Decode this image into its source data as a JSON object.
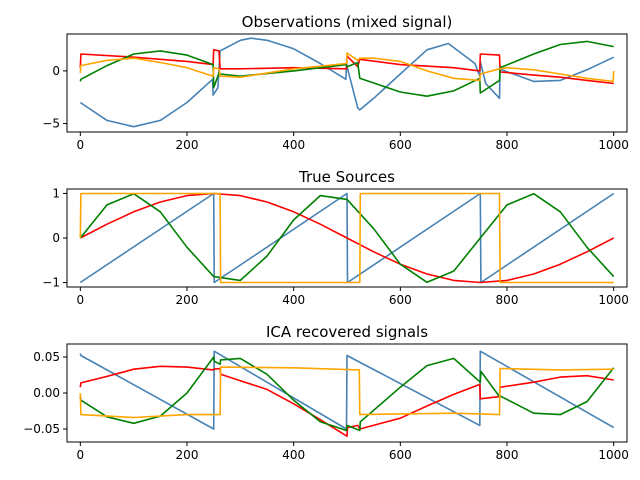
{
  "chart_data": [
    {
      "type": "line",
      "title": "Observations (mixed signal)",
      "xlim": [
        -25,
        1025
      ],
      "ylim": [
        -5.8,
        3.5
      ],
      "xticks": [
        0,
        200,
        400,
        600,
        800,
        1000
      ],
      "xtick_labels": [
        "0",
        "200",
        "400",
        "600",
        "800",
        "1000"
      ],
      "yticks": [
        0,
        -5
      ],
      "ytick_labels": [
        "0",
        "−5"
      ],
      "series": [
        {
          "color": "#4682b4",
          "x": [
            0,
            50,
            100,
            150,
            200,
            248,
            249,
            258,
            262,
            300,
            320,
            350,
            400,
            450,
            498,
            499,
            520,
            524,
            550,
            600,
            650,
            690,
            740,
            749,
            750,
            760,
            786,
            787,
            790,
            850,
            900,
            950,
            1000
          ],
          "y": [
            -3.0,
            -4.7,
            -5.3,
            -4.7,
            -3.0,
            -0.8,
            -2.3,
            -1.6,
            1.9,
            2.9,
            3.1,
            2.9,
            2.1,
            0.7,
            -0.8,
            0.6,
            -3.5,
            -3.7,
            -2.6,
            -0.3,
            2.0,
            2.6,
            0.7,
            -0.5,
            0.9,
            -1.2,
            -2.6,
            0.5,
            0.1,
            -1.0,
            -0.9,
            0.1,
            1.3
          ]
        },
        {
          "color": "#ff0000",
          "x": [
            0,
            1,
            100,
            200,
            249,
            250,
            260,
            262,
            300,
            400,
            499,
            500,
            520,
            524,
            600,
            700,
            749,
            750,
            786,
            787,
            850,
            900,
            950,
            1000
          ],
          "y": [
            0.3,
            1.6,
            1.3,
            0.9,
            0.6,
            2.0,
            1.9,
            0.2,
            0.2,
            0.3,
            0.2,
            1.4,
            0.4,
            1.1,
            0.6,
            0.3,
            0.0,
            1.6,
            1.5,
            -0.1,
            -0.4,
            -0.6,
            -0.9,
            -1.2
          ]
        },
        {
          "color": "#008000",
          "x": [
            0,
            1,
            50,
            100,
            150,
            200,
            249,
            250,
            260,
            262,
            300,
            400,
            499,
            500,
            520,
            524,
            600,
            650,
            700,
            749,
            750,
            786,
            787,
            850,
            900,
            950,
            1000
          ],
          "y": [
            -1.0,
            -0.8,
            0.5,
            1.6,
            1.9,
            1.5,
            0.6,
            -1.6,
            -0.2,
            -0.3,
            -0.5,
            0.0,
            0.6,
            0.4,
            0.8,
            -0.7,
            -2.0,
            -2.4,
            -1.9,
            -0.7,
            -2.1,
            -0.9,
            0.3,
            1.6,
            2.5,
            2.8,
            2.3
          ]
        },
        {
          "color": "#ffa500",
          "x": [
            0,
            1,
            50,
            100,
            150,
            200,
            249,
            250,
            260,
            262,
            300,
            400,
            499,
            500,
            520,
            524,
            550,
            600,
            650,
            700,
            749,
            750,
            786,
            787,
            800,
            850,
            900,
            950,
            999,
            1000
          ],
          "y": [
            -0.2,
            0.5,
            1.0,
            1.2,
            0.8,
            0.3,
            -0.5,
            0.3,
            0.2,
            -0.5,
            -0.6,
            0.2,
            0.7,
            1.7,
            1.0,
            1.2,
            1.2,
            0.9,
            0.0,
            -0.7,
            -0.9,
            -0.3,
            0.2,
            0.2,
            0.3,
            0.1,
            -0.3,
            -0.7,
            -1.0,
            0.0
          ]
        }
      ]
    },
    {
      "type": "line",
      "title": "True Sources",
      "xlim": [
        -25,
        1025
      ],
      "ylim": [
        -1.1,
        1.1
      ],
      "xticks": [
        0,
        200,
        400,
        600,
        800,
        1000
      ],
      "xtick_labels": [
        "0",
        "200",
        "400",
        "600",
        "800",
        "1000"
      ],
      "yticks": [
        1,
        0,
        -1
      ],
      "ytick_labels": [
        "1",
        "0",
        "−1"
      ],
      "series": [
        {
          "color": "#4682b4",
          "x": [
            0,
            250,
            251,
            500,
            501,
            750,
            751,
            1000
          ],
          "y": [
            -1,
            1,
            -1,
            1,
            -1,
            1,
            -1,
            1
          ]
        },
        {
          "color": "#ff0000",
          "x": [
            0,
            50,
            100,
            150,
            200,
            250,
            300,
            350,
            400,
            450,
            500,
            550,
            600,
            650,
            700,
            750,
            800,
            850,
            900,
            950,
            1000
          ],
          "y": [
            0,
            0.309,
            0.588,
            0.809,
            0.951,
            1.0,
            0.951,
            0.809,
            0.588,
            0.309,
            0,
            -0.309,
            -0.588,
            -0.809,
            -0.951,
            -1.0,
            -0.951,
            -0.809,
            -0.588,
            -0.309,
            0
          ]
        },
        {
          "color": "#008000",
          "x": [
            0,
            50,
            100,
            150,
            200,
            250,
            300,
            350,
            400,
            450,
            500,
            550,
            600,
            650,
            700,
            750,
            800,
            850,
            900,
            950,
            1000
          ],
          "y": [
            0,
            0.743,
            0.995,
            0.588,
            -0.208,
            -0.866,
            -0.951,
            -0.407,
            0.407,
            0.951,
            0.866,
            0.208,
            -0.588,
            -0.995,
            -0.743,
            0,
            0.743,
            0.995,
            0.588,
            -0.208,
            -0.866
          ]
        },
        {
          "color": "#ffa500",
          "x": [
            0,
            1,
            262,
            263,
            524,
            525,
            786,
            787,
            1000
          ],
          "y": [
            0,
            1,
            1,
            -1,
            -1,
            1,
            1,
            -1,
            -1
          ]
        }
      ]
    },
    {
      "type": "line",
      "title": "ICA recovered signals",
      "xlim": [
        -25,
        1025
      ],
      "ylim": [
        -0.068,
        0.068
      ],
      "xticks": [
        0,
        200,
        400,
        600,
        800,
        1000
      ],
      "xtick_labels": [
        "0",
        "200",
        "400",
        "600",
        "800",
        "1000"
      ],
      "yticks": [
        0.05,
        0,
        -0.05
      ],
      "ytick_labels": [
        "0.05",
        "0.00",
        "−0.05"
      ],
      "series": [
        {
          "color": "#4682b4",
          "x": [
            0,
            1,
            250,
            251,
            499,
            500,
            749,
            750,
            1000
          ],
          "y": [
            0.055,
            0.052,
            -0.05,
            0.058,
            -0.05,
            0.052,
            -0.045,
            0.058,
            -0.048
          ]
        },
        {
          "color": "#ff0000",
          "x": [
            0,
            1,
            50,
            100,
            150,
            200,
            249,
            250,
            262,
            263,
            350,
            400,
            450,
            500,
            501,
            520,
            524,
            600,
            650,
            700,
            749,
            750,
            786,
            787,
            850,
            900,
            950,
            1000
          ],
          "y": [
            0.008,
            0.014,
            0.023,
            0.033,
            0.037,
            0.036,
            0.032,
            0.033,
            0.034,
            0.026,
            0.005,
            -0.015,
            -0.037,
            -0.06,
            -0.048,
            -0.045,
            -0.05,
            -0.035,
            -0.018,
            -0.002,
            0.012,
            -0.008,
            -0.005,
            0.008,
            0.015,
            0.022,
            0.024,
            0.018
          ]
        },
        {
          "color": "#008000",
          "x": [
            0,
            1,
            50,
            100,
            150,
            200,
            250,
            251,
            262,
            263,
            300,
            350,
            400,
            450,
            499,
            500,
            524,
            525,
            600,
            650,
            700,
            750,
            751,
            786,
            787,
            850,
            900,
            950,
            1000
          ],
          "y": [
            -0.005,
            -0.01,
            -0.033,
            -0.042,
            -0.032,
            0.0,
            0.05,
            0.044,
            0.04,
            0.046,
            0.048,
            0.026,
            -0.01,
            -0.04,
            -0.052,
            -0.045,
            -0.052,
            -0.04,
            0.008,
            0.038,
            0.048,
            0.015,
            0.03,
            -0.005,
            -0.004,
            -0.028,
            -0.03,
            -0.012,
            0.035
          ]
        },
        {
          "color": "#ffa500",
          "x": [
            0,
            1,
            100,
            200,
            262,
            263,
            400,
            523,
            524,
            600,
            700,
            786,
            787,
            900,
            1000
          ],
          "y": [
            0.0,
            -0.03,
            -0.034,
            -0.03,
            -0.03,
            0.036,
            0.035,
            0.032,
            -0.03,
            -0.029,
            -0.028,
            -0.03,
            0.034,
            0.032,
            0.033
          ]
        }
      ]
    }
  ]
}
